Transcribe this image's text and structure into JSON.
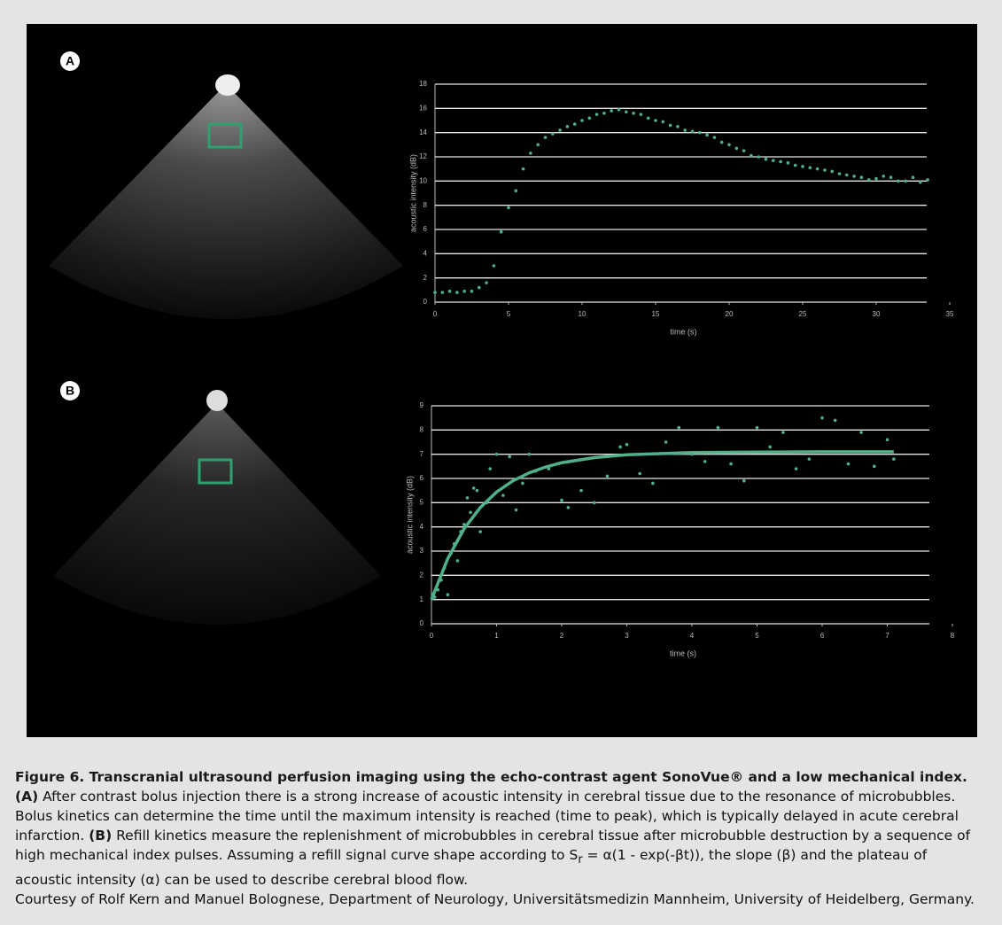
{
  "panel_labels": [
    "A",
    "B"
  ],
  "chart_data": [
    {
      "type": "scatter",
      "xlabel": "time (s)",
      "ylabel": "acoustic intensity (dB)",
      "xlim": [
        0,
        35
      ],
      "xticks": [
        0,
        5,
        10,
        15,
        20,
        25,
        30,
        35
      ],
      "ylim": [
        0,
        18
      ],
      "yticks": [
        0,
        2,
        4,
        6,
        8,
        10,
        12,
        14,
        16,
        18
      ],
      "grid": true,
      "series": [
        {
          "type": "scatter",
          "color": "#4fb08a",
          "x": [
            0,
            0.5,
            1,
            1.5,
            2,
            2.5,
            3,
            3.5,
            4,
            4.5,
            5,
            5.5,
            6,
            6.5,
            7,
            7.5,
            8,
            8.5,
            9,
            9.5,
            10,
            10.5,
            11,
            11.5,
            12,
            12.5,
            13,
            13.5,
            14,
            14.5,
            15,
            15.5,
            16,
            16.5,
            17,
            17.5,
            18,
            18.5,
            19,
            19.5,
            20,
            20.5,
            21,
            21.5,
            22,
            22.5,
            23,
            23.5,
            24,
            24.5,
            25,
            25.5,
            26,
            26.5,
            27,
            27.5,
            28,
            28.5,
            29,
            29.5,
            30,
            30.5,
            31,
            31.5,
            32,
            32.5,
            33,
            33.5
          ],
          "values": [
            0.8,
            0.8,
            0.9,
            0.8,
            0.9,
            0.9,
            1.2,
            1.6,
            3.0,
            5.8,
            7.8,
            9.2,
            11.0,
            12.3,
            13.0,
            13.6,
            13.9,
            14.2,
            14.5,
            14.7,
            15.0,
            15.2,
            15.5,
            15.6,
            15.8,
            15.9,
            15.7,
            15.6,
            15.5,
            15.2,
            15.0,
            14.9,
            14.6,
            14.5,
            14.2,
            14.1,
            14.0,
            13.8,
            13.6,
            13.2,
            13.0,
            12.7,
            12.5,
            12.1,
            12.0,
            11.8,
            11.7,
            11.6,
            11.5,
            11.3,
            11.2,
            11.1,
            11.0,
            10.9,
            10.8,
            10.6,
            10.5,
            10.4,
            10.3,
            10.1,
            10.2,
            10.4,
            10.3,
            10.0,
            10.0,
            10.3,
            9.9,
            10.1
          ]
        }
      ]
    },
    {
      "type": "scatter",
      "xlabel": "time (s)",
      "ylabel": "acoustic intensity (dB)",
      "xlim": [
        0,
        8
      ],
      "xticks": [
        0,
        1,
        2,
        3,
        4,
        5,
        6,
        7,
        8
      ],
      "ylim": [
        0,
        9
      ],
      "yticks": [
        0,
        1,
        2,
        3,
        4,
        5,
        6,
        7,
        8,
        9
      ],
      "grid": true,
      "series": [
        {
          "type": "scatter",
          "color": "#4fb08a",
          "x": [
            0.05,
            0.1,
            0.15,
            0.2,
            0.25,
            0.3,
            0.35,
            0.4,
            0.45,
            0.5,
            0.55,
            0.6,
            0.65,
            0.7,
            0.75,
            0.85,
            0.9,
            1.0,
            1.1,
            1.2,
            1.3,
            1.4,
            1.5,
            1.6,
            1.8,
            2.0,
            2.1,
            2.3,
            2.5,
            2.7,
            2.9,
            3.0,
            3.2,
            3.4,
            3.6,
            3.8,
            4.0,
            4.2,
            4.4,
            4.6,
            4.8,
            5.0,
            5.2,
            5.4,
            5.6,
            5.8,
            6.0,
            6.2,
            6.4,
            6.6,
            6.8,
            7.0,
            7.1
          ],
          "values": [
            1.1,
            1.4,
            1.8,
            2.3,
            1.2,
            2.9,
            3.3,
            2.6,
            3.8,
            4.1,
            5.2,
            4.6,
            5.6,
            5.5,
            3.8,
            5.0,
            6.4,
            7.0,
            5.3,
            6.9,
            4.7,
            5.8,
            7.0,
            6.3,
            6.4,
            5.1,
            4.8,
            5.5,
            5.0,
            6.1,
            7.3,
            7.4,
            6.2,
            5.8,
            7.5,
            8.1,
            7.0,
            6.7,
            8.1,
            6.6,
            5.9,
            8.1,
            7.3,
            7.9,
            6.4,
            6.8,
            8.5,
            8.4,
            6.6,
            7.9,
            6.5,
            7.6,
            6.8
          ]
        },
        {
          "type": "line",
          "color": "#4fb08a",
          "x": [
            0,
            0.25,
            0.5,
            0.75,
            1,
            1.25,
            1.5,
            1.75,
            2,
            2.5,
            3,
            4,
            5,
            6,
            7.1
          ],
          "values": [
            1.0,
            2.69,
            3.92,
            4.8,
            5.44,
            5.9,
            6.23,
            6.47,
            6.65,
            6.86,
            6.98,
            7.07,
            7.09,
            7.1,
            7.1
          ]
        }
      ]
    }
  ],
  "caption": {
    "title": "Figure 6. Transcranial ultrasound perfusion imaging using the echo-contrast agent SonoVue® and a low mechanical index.",
    "text": [
      "(A)",
      " After contrast bolus injection there is a strong increase of acoustic intensity in cerebral tissue due to the resonance of microbubbles. Bolus kinetics can determine the time until the maximum intensity is reached (time to peak), which is typically delayed in acute cerebral infarction. ",
      "(B)",
      " Refill kinetics measure the replenishment of microbubbles in cerebral tissue after microbubble destruction by a sequence of high mechanical index pulses. Assuming a refill signal curve shape according to S",
      "r",
      " = α(1 - exp(-βt)), the slope (β) and the plateau of acoustic intensity (α) can be used to describe cerebral blood flow."
    ],
    "credit": "Courtesy of Rolf Kern and Manuel Bolognese, Department of Neurology, Universitätsmedizin Mannheim, University of Heidelberg, Germany."
  }
}
